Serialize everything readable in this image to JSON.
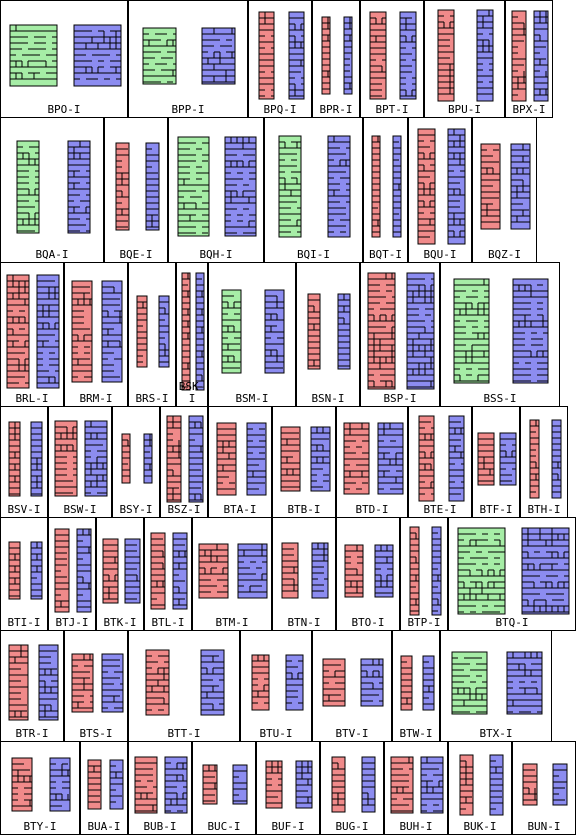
{
  "colors": {
    "red": "#f08a8a",
    "blue": "#8c8cf0",
    "green": "#a6eda6",
    "stroke": "#000000"
  },
  "rows": [
    [
      "BPO-I",
      "BPP-I",
      "BPQ-I",
      "BPR-I",
      "BPT-I",
      "BPU-I",
      "BPX-I"
    ],
    [
      "BQA-I",
      "BQE-I",
      "BQH-I",
      "BQI-I",
      "BQT-I",
      "BQU-I",
      "BQZ-I"
    ],
    [
      "BRL-I",
      "BRM-I",
      "BRS-I",
      "BSK-I",
      "BSM-I",
      "BSN-I",
      "BSP-I",
      "BSS-I"
    ],
    [
      "BSV-I",
      "BSW-I",
      "BSY-I",
      "BSZ-I",
      "BTA-I",
      "BTB-I",
      "BTD-I",
      "BTE-I",
      "BTF-I",
      "BTH-I"
    ],
    [
      "BTI-I",
      "BTJ-I",
      "BTK-I",
      "BTL-I",
      "BTM-I",
      "BTN-I",
      "BTO-I",
      "BTP-I",
      "BTQ-I"
    ],
    [
      "BTR-I",
      "BTS-I",
      "BTT-I",
      "BTU-I",
      "BTV-I",
      "BTW-I",
      "BTX-I"
    ],
    [
      "BTY-I",
      "BUA-I",
      "BUB-I",
      "BUC-I",
      "BUF-I",
      "BUG-I",
      "BUH-I",
      "BUK-I",
      "BUN-I"
    ]
  ],
  "cell_colors": {
    "BPO-I": [
      "green",
      "blue"
    ],
    "BPP-I": [
      "green",
      "blue"
    ],
    "BQA-I": [
      "green",
      "blue"
    ],
    "BQH-I": [
      "green",
      "blue"
    ],
    "BQI-I": [
      "green",
      "blue"
    ],
    "BSM-I": [
      "green",
      "blue"
    ],
    "BSS-I": [
      "green",
      "blue"
    ],
    "BTQ-I": [
      "green",
      "blue"
    ],
    "BTX-I": [
      "green",
      "blue"
    ]
  }
}
